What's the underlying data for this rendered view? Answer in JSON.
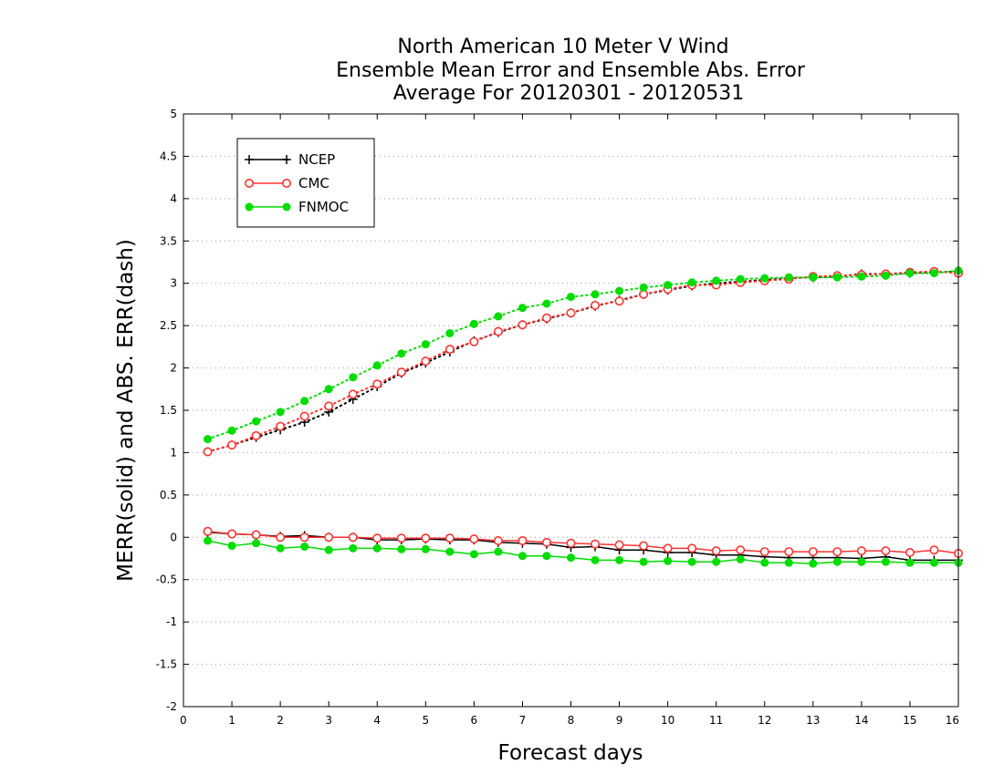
{
  "chart_data": {
    "type": "line",
    "title": [
      "North American 10 Meter V Wind",
      "Ensemble Mean Error and Ensemble Abs. Error",
      "Average For 20120301 - 20120531"
    ],
    "xlabel": "Forecast days",
    "ylabel": "MERR(solid) and ABS. ERR(dash)",
    "xlim": [
      0,
      16
    ],
    "ylim": [
      -2,
      5
    ],
    "xticks": [
      "0",
      "1",
      "2",
      "3",
      "4",
      "5",
      "6",
      "7",
      "8",
      "9",
      "10",
      "11",
      "12",
      "13",
      "14",
      "15",
      "16"
    ],
    "yticks": [
      "5",
      "4.5",
      "4",
      "3.5",
      "3",
      "2.5",
      "2",
      "1.5",
      "1",
      "0.5",
      "0",
      "-0.5",
      "-1",
      "-1.5",
      "-2"
    ],
    "grid": "horizontal dotted",
    "legend_position": "top-left",
    "x": [
      0.5,
      1,
      1.5,
      2,
      2.5,
      3,
      3.5,
      4,
      4.5,
      5,
      5.5,
      6,
      6.5,
      7,
      7.5,
      8,
      8.5,
      9,
      9.5,
      10,
      10.5,
      11,
      11.5,
      12,
      12.5,
      13,
      13.5,
      14,
      14.5,
      15,
      15.5,
      16
    ],
    "series": [
      {
        "name": "NCEP",
        "color": "#000000",
        "marker": "plus",
        "mean_error": [
          0.06,
          0.04,
          0.03,
          0.01,
          0.02,
          0.0,
          0.0,
          -0.03,
          -0.03,
          -0.02,
          -0.03,
          -0.03,
          -0.06,
          -0.07,
          -0.08,
          -0.12,
          -0.11,
          -0.15,
          -0.15,
          -0.18,
          -0.18,
          -0.21,
          -0.21,
          -0.23,
          -0.24,
          -0.24,
          -0.24,
          -0.25,
          -0.23,
          -0.27,
          -0.27,
          -0.27
        ],
        "abs_error": [
          1.01,
          1.09,
          1.18,
          1.27,
          1.36,
          1.48,
          1.63,
          1.78,
          1.94,
          2.06,
          2.19,
          2.32,
          2.42,
          2.51,
          2.58,
          2.65,
          2.73,
          2.8,
          2.87,
          2.92,
          2.97,
          3.0,
          3.02,
          3.04,
          3.06,
          3.07,
          3.08,
          3.11,
          3.11,
          3.12,
          3.13,
          3.14
        ]
      },
      {
        "name": "CMC",
        "color": "#ff3333",
        "marker": "open-circle",
        "mean_error": [
          0.07,
          0.04,
          0.03,
          0.0,
          0.0,
          0.0,
          0.0,
          -0.01,
          -0.01,
          -0.01,
          -0.01,
          -0.02,
          -0.04,
          -0.04,
          -0.06,
          -0.07,
          -0.08,
          -0.09,
          -0.1,
          -0.13,
          -0.13,
          -0.16,
          -0.15,
          -0.17,
          -0.17,
          -0.17,
          -0.17,
          -0.16,
          -0.16,
          -0.18,
          -0.15,
          -0.19
        ],
        "abs_error": [
          1.01,
          1.09,
          1.2,
          1.31,
          1.43,
          1.55,
          1.69,
          1.81,
          1.95,
          2.08,
          2.22,
          2.31,
          2.43,
          2.51,
          2.59,
          2.65,
          2.74,
          2.79,
          2.87,
          2.93,
          2.98,
          2.98,
          3.01,
          3.03,
          3.05,
          3.08,
          3.09,
          3.1,
          3.11,
          3.13,
          3.14,
          3.12
        ]
      },
      {
        "name": "FNMOC",
        "color": "#00dd00",
        "marker": "filled-circle",
        "mean_error": [
          -0.04,
          -0.1,
          -0.07,
          -0.13,
          -0.11,
          -0.15,
          -0.13,
          -0.13,
          -0.14,
          -0.14,
          -0.17,
          -0.2,
          -0.17,
          -0.22,
          -0.22,
          -0.24,
          -0.27,
          -0.27,
          -0.29,
          -0.28,
          -0.29,
          -0.29,
          -0.26,
          -0.3,
          -0.3,
          -0.31,
          -0.29,
          -0.29,
          -0.29,
          -0.3,
          -0.3,
          -0.3
        ],
        "abs_error": [
          1.16,
          1.26,
          1.37,
          1.48,
          1.61,
          1.75,
          1.89,
          2.03,
          2.17,
          2.28,
          2.41,
          2.52,
          2.61,
          2.71,
          2.76,
          2.84,
          2.87,
          2.91,
          2.95,
          2.98,
          3.01,
          3.03,
          3.05,
          3.06,
          3.07,
          3.07,
          3.07,
          3.08,
          3.09,
          3.12,
          3.12,
          3.15
        ]
      }
    ]
  }
}
